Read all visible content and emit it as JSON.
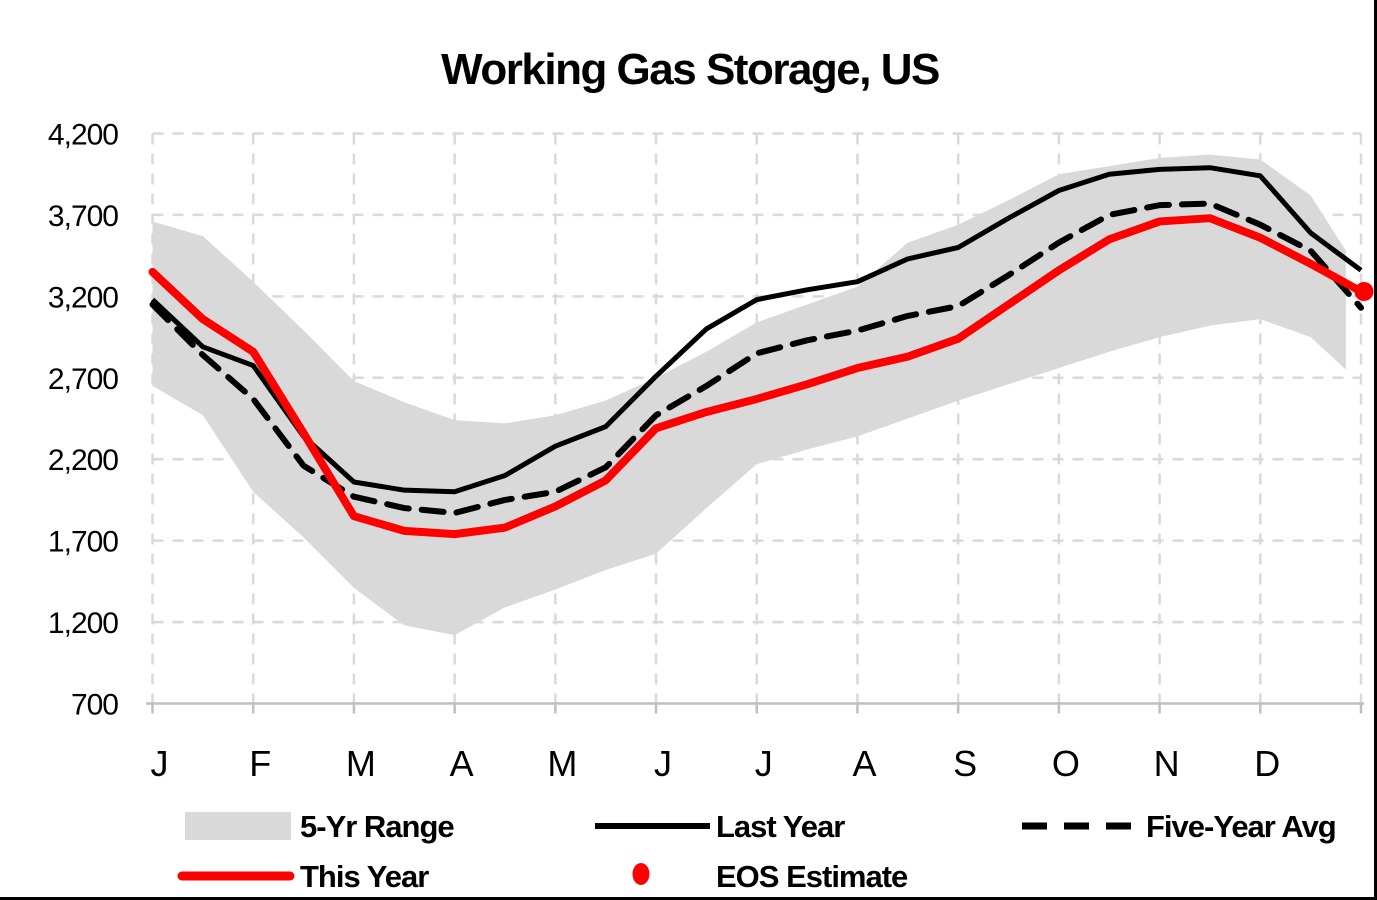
{
  "title": "Working Gas Storage, US",
  "colors": {
    "this_year": "#fe0000",
    "last_year": "#000000",
    "five_year_avg": "#000000",
    "range_band": "#d9d9d9",
    "grid": "#d9d9d9",
    "axis": "#bfbfbf",
    "frame": "#000000"
  },
  "y_axis": {
    "ticks": [
      "4,200",
      "3,700",
      "3,200",
      "2,700",
      "2,200",
      "1,700",
      "1,200",
      "700"
    ],
    "values": [
      4200,
      3700,
      3200,
      2700,
      2200,
      1700,
      1200,
      700
    ]
  },
  "x_axis": {
    "months": [
      "J",
      "F",
      "M",
      "A",
      "M",
      "J",
      "J",
      "A",
      "S",
      "O",
      "N",
      "D"
    ]
  },
  "legend": {
    "items": [
      {
        "id": "range",
        "label": "5-Yr Range"
      },
      {
        "id": "last_year",
        "label": "Last Year"
      },
      {
        "id": "five_year_avg",
        "label": "Five-Year Avg"
      },
      {
        "id": "this_year",
        "label": "This Year"
      },
      {
        "id": "eos",
        "label": "EOS Estimate"
      }
    ]
  },
  "chart_data": {
    "type": "line",
    "title": "Working Gas Storage, US",
    "xlabel": "",
    "ylabel": "",
    "ylim": [
      700,
      4200
    ],
    "ytick_step": 500,
    "grid": "dashed-light-gray",
    "legend_position": "bottom",
    "x_unit": "months (0 = Jan 1, 12 = Dec 31)",
    "x": [
      0,
      0.5,
      1,
      1.5,
      2,
      2.5,
      3,
      3.5,
      4,
      4.5,
      5,
      5.5,
      6,
      6.5,
      7,
      7.5,
      8,
      8.5,
      9,
      9.5,
      10,
      10.5,
      11,
      11.5,
      12
    ],
    "series": [
      {
        "name": "5-Yr Range",
        "type": "band",
        "x": [
          0,
          0.5,
          1,
          1.5,
          2,
          2.5,
          3,
          3.5,
          4,
          4.5,
          5,
          5.5,
          6,
          6.5,
          7,
          7.5,
          8,
          8.5,
          9,
          9.5,
          10,
          10.5,
          11,
          11.5,
          11.85
        ],
        "top": [
          3660,
          3570,
          3290,
          2990,
          2680,
          2550,
          2440,
          2420,
          2470,
          2560,
          2700,
          2860,
          3040,
          3150,
          3260,
          3530,
          3640,
          3790,
          3950,
          4000,
          4050,
          4070,
          4040,
          3820,
          3480
        ],
        "bottom": [
          2650,
          2470,
          2000,
          1720,
          1410,
          1180,
          1120,
          1290,
          1400,
          1520,
          1620,
          1900,
          2170,
          2260,
          2340,
          2450,
          2560,
          2660,
          2760,
          2860,
          2950,
          3020,
          3060,
          2950,
          2750
        ]
      },
      {
        "name": "Last Year",
        "type": "line",
        "style": "solid",
        "values": [
          3180,
          2890,
          2775,
          2340,
          2060,
          2010,
          2000,
          2100,
          2280,
          2400,
          2710,
          3000,
          3180,
          3240,
          3290,
          3430,
          3500,
          3680,
          3850,
          3950,
          3980,
          3990,
          3940,
          3590,
          3360
        ]
      },
      {
        "name": "Five-Year Avg",
        "type": "line",
        "style": "dashed",
        "values": [
          3150,
          2840,
          2570,
          2160,
          1970,
          1900,
          1870,
          1950,
          2000,
          2150,
          2470,
          2650,
          2850,
          2930,
          2990,
          3080,
          3140,
          3330,
          3530,
          3700,
          3760,
          3770,
          3640,
          3480,
          3130
        ]
      },
      {
        "name": "This Year",
        "type": "line",
        "style": "solid-thick",
        "values": [
          3350,
          3060,
          2860,
          2360,
          1850,
          1760,
          1740,
          1780,
          1910,
          2070,
          2390,
          2490,
          2570,
          2660,
          2760,
          2830,
          2940,
          3150,
          3360,
          3550,
          3660,
          3680,
          3560,
          3400,
          3230
        ]
      },
      {
        "name": "EOS Estimate",
        "type": "point",
        "x_point": 12,
        "value": 3230
      }
    ]
  }
}
